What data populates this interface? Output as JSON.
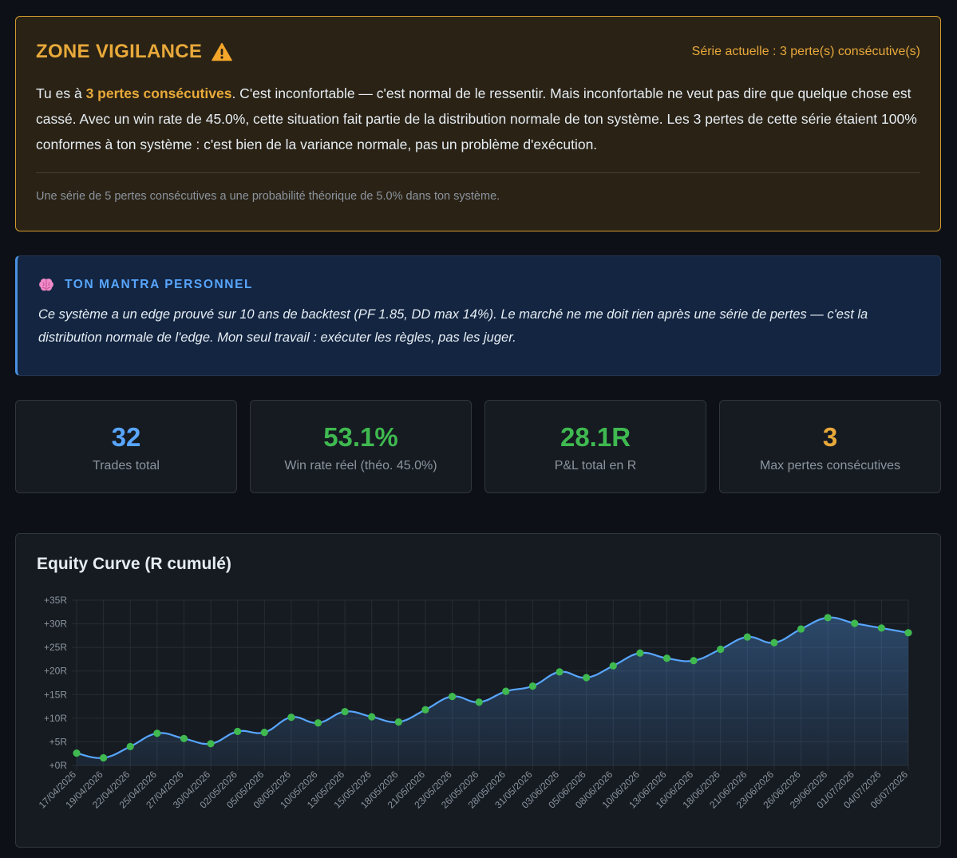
{
  "alert": {
    "title": "ZONE VIGILANCE",
    "series": "Série actuelle : 3 perte(s) consécutive(s)",
    "body_prefix": "Tu es à ",
    "body_highlight": "3 pertes consécutives",
    "body_rest": ". C'est inconfortable — c'est normal de le ressentir. Mais inconfortable ne veut pas dire que quelque chose est cassé. Avec un win rate de 45.0%, cette situation fait partie de la distribution normale de ton système. Les 3 pertes de cette série étaient 100% conformes à ton système : c'est bien de la variance normale, pas un problème d'exécution.",
    "footnote": "Une série de 5 pertes consécutives a une probabilité théorique de 5.0% dans ton système."
  },
  "mantra": {
    "title": "TON MANTRA PERSONNEL",
    "text": "Ce système a un edge prouvé sur 10 ans de backtest (PF 1.85, DD max 14%). Le marché ne me doit rien après une série de pertes — c'est la distribution normale de l'edge. Mon seul travail : exécuter les règles, pas les juger."
  },
  "stats": [
    {
      "value": "32",
      "label": "Trades total",
      "color": "#58a6ff"
    },
    {
      "value": "53.1%",
      "label": "Win rate réel (théo. 45.0%)",
      "color": "#3fb950"
    },
    {
      "value": "28.1R",
      "label": "P&L total en R",
      "color": "#3fb950"
    },
    {
      "value": "3",
      "label": "Max pertes consécutives",
      "color": "#e8a93a"
    }
  ],
  "colors": {
    "warning": "#e8a93a",
    "accent": "#58a6ff",
    "positive": "#3fb950",
    "line": "#58a6ff",
    "point": "#3fb950"
  },
  "icons": {
    "alert": "warning-triangle-icon",
    "mantra": "brain-icon"
  },
  "chart_data": {
    "type": "line",
    "title": "Equity Curve (R cumulé)",
    "xlabel": "",
    "ylabel": "",
    "ylim": [
      0,
      35
    ],
    "yticks": [
      0,
      5,
      10,
      15,
      20,
      25,
      30,
      35
    ],
    "ytick_labels": [
      "+0R",
      "+5R",
      "+10R",
      "+15R",
      "+20R",
      "+25R",
      "+30R",
      "+35R"
    ],
    "grid": true,
    "legend": "none",
    "x": [
      "17/04/2026",
      "19/04/2026",
      "22/04/2026",
      "25/04/2026",
      "27/04/2026",
      "30/04/2026",
      "02/05/2026",
      "05/05/2026",
      "08/05/2026",
      "10/05/2026",
      "13/05/2026",
      "15/05/2026",
      "18/05/2026",
      "21/05/2026",
      "23/05/2026",
      "26/05/2026",
      "28/05/2026",
      "31/05/2026",
      "03/06/2026",
      "05/06/2026",
      "08/06/2026",
      "10/06/2026",
      "13/06/2026",
      "16/06/2026",
      "18/06/2026",
      "21/06/2026",
      "23/06/2026",
      "26/06/2026",
      "29/06/2026",
      "01/07/2026",
      "04/07/2026",
      "06/07/2026"
    ],
    "series": [
      {
        "values": [
          2.6,
          1.6,
          4.0,
          6.8,
          5.7,
          4.6,
          7.2,
          7.0,
          10.2,
          9.0,
          11.4,
          10.3,
          9.2,
          11.8,
          14.6,
          13.4,
          15.7,
          16.8,
          19.8,
          18.6,
          21.1,
          23.8,
          22.7,
          22.2,
          24.6,
          27.2,
          26.0,
          28.9,
          31.3,
          30.1,
          29.1,
          28.1
        ]
      }
    ]
  }
}
